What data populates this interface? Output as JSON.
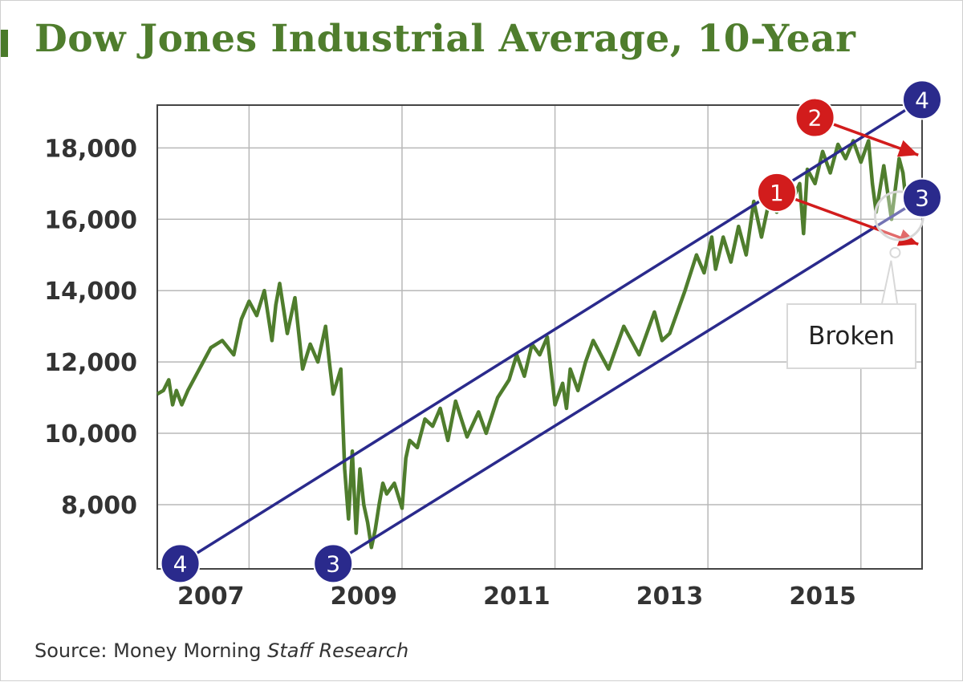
{
  "chart_data": {
    "type": "line",
    "title": "Dow Jones Industrial Average, 10-Year",
    "xlabel": "",
    "ylabel": "",
    "xlim": [
      2006.3,
      2016.3
    ],
    "ylim": [
      6200,
      19200
    ],
    "x_ticks": [
      2007,
      2009,
      2011,
      2013,
      2015
    ],
    "x_tick_labels": [
      "2007",
      "2009",
      "2011",
      "2013",
      "2015"
    ],
    "y_ticks": [
      8000,
      10000,
      12000,
      14000,
      16000,
      18000
    ],
    "y_tick_labels": [
      "8,000",
      "10,000",
      "12,000",
      "14,000",
      "16,000",
      "18,000"
    ],
    "grid": true,
    "series": [
      {
        "name": "Dow Jones Industrial Average",
        "color": "#4f7d2d",
        "x": [
          2006.3,
          2006.38,
          2006.45,
          2006.5,
          2006.55,
          2006.62,
          2006.7,
          2006.85,
          2007.0,
          2007.15,
          2007.3,
          2007.4,
          2007.5,
          2007.6,
          2007.7,
          2007.8,
          2007.85,
          2007.9,
          2008.0,
          2008.1,
          2008.2,
          2008.3,
          2008.4,
          2008.5,
          2008.55,
          2008.6,
          2008.7,
          2008.75,
          2008.8,
          2008.85,
          2008.9,
          2008.95,
          2009.0,
          2009.05,
          2009.1,
          2009.15,
          2009.2,
          2009.25,
          2009.3,
          2009.4,
          2009.5,
          2009.55,
          2009.6,
          2009.7,
          2009.8,
          2009.9,
          2010.0,
          2010.1,
          2010.2,
          2010.35,
          2010.5,
          2010.6,
          2010.75,
          2010.9,
          2011.0,
          2011.1,
          2011.2,
          2011.3,
          2011.4,
          2011.5,
          2011.6,
          2011.65,
          2011.7,
          2011.8,
          2011.9,
          2012.0,
          2012.2,
          2012.4,
          2012.6,
          2012.8,
          2012.9,
          2013.0,
          2013.2,
          2013.35,
          2013.45,
          2013.55,
          2013.6,
          2013.7,
          2013.8,
          2013.9,
          2014.0,
          2014.1,
          2014.2,
          2014.3,
          2014.4,
          2014.5,
          2014.6,
          2014.7,
          2014.75,
          2014.8,
          2014.9,
          2015.0,
          2015.1,
          2015.2,
          2015.3,
          2015.4,
          2015.5,
          2015.6,
          2015.65,
          2015.7,
          2015.8,
          2015.9,
          2016.0,
          2016.05,
          2016.1,
          2016.2
        ],
        "values": [
          11100,
          11200,
          11500,
          10800,
          11200,
          10800,
          11200,
          11800,
          12400,
          12600,
          12200,
          13200,
          13700,
          13300,
          14000,
          12600,
          13600,
          14200,
          12800,
          13800,
          11800,
          12500,
          12000,
          13000,
          12000,
          11100,
          11800,
          9000,
          7600,
          9500,
          7200,
          9000,
          8000,
          7500,
          6800,
          7300,
          8000,
          8600,
          8300,
          8600,
          7900,
          9300,
          9800,
          9600,
          10400,
          10200,
          10700,
          9800,
          10900,
          9900,
          10600,
          10000,
          11000,
          11500,
          12200,
          11600,
          12500,
          12200,
          12700,
          10800,
          11400,
          10700,
          11800,
          11200,
          12000,
          12600,
          11800,
          13000,
          12200,
          13400,
          12600,
          12800,
          14000,
          15000,
          14500,
          15500,
          14600,
          15500,
          14800,
          15800,
          15000,
          16500,
          15500,
          16500,
          16200,
          16900,
          16500,
          17000,
          15600,
          17400,
          17000,
          17900,
          17300,
          18100,
          17700,
          18200,
          17600,
          18200,
          17000,
          16200,
          17500,
          16000,
          17700,
          17300,
          16300,
          16400
        ]
      }
    ],
    "trend_lines": [
      {
        "label": "4",
        "color": "#2a2a8c",
        "x0": 2006.6,
        "y0": 6350,
        "x1": 2016.3,
        "y1": 19350
      },
      {
        "label": "3",
        "color": "#2a2a8c",
        "x0": 2008.6,
        "y0": 6350,
        "x1": 2016.3,
        "y1": 16600
      }
    ],
    "arrows": [
      {
        "label": "1",
        "color": "#d21c1c",
        "x0": 2014.4,
        "y0": 16750,
        "x1": 2016.25,
        "y1": 15300
      },
      {
        "label": "2",
        "color": "#d21c1c",
        "x0": 2014.9,
        "y0": 18850,
        "x1": 2016.25,
        "y1": 17800
      }
    ],
    "markers": [
      {
        "label": "4",
        "color": "#2a2a8c",
        "x": 2006.6,
        "y": 6350
      },
      {
        "label": "3",
        "color": "#2a2a8c",
        "x": 2008.6,
        "y": 6350
      },
      {
        "label": "4",
        "color": "#2a2a8c",
        "x": 2016.3,
        "y": 19350
      },
      {
        "label": "3",
        "color": "#2a2a8c",
        "x": 2016.3,
        "y": 16600
      },
      {
        "label": "1",
        "color": "#d21c1c",
        "x": 2014.4,
        "y": 16750
      },
      {
        "label": "2",
        "color": "#d21c1c",
        "x": 2014.9,
        "y": 18850
      }
    ],
    "annotation": {
      "text": "Broken",
      "x": 2016.0,
      "y": 16100
    }
  },
  "source": {
    "prefix": "Source:",
    "org": "Money Morning",
    "suffix": "Staff Research"
  }
}
